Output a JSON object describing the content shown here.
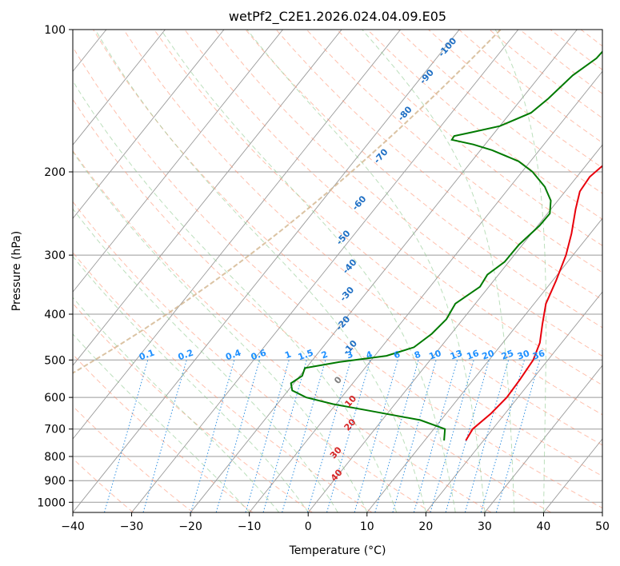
{
  "chart_data": {
    "type": "line",
    "subtype": "skew-t log-p",
    "title": "wetPf2_C2E1.2026.024.04.09.E05",
    "xlabel": "Temperature (°C)",
    "ylabel": "Pressure (hPa)",
    "xlim": [
      -40,
      50
    ],
    "ylim_hpa": [
      1050,
      100
    ],
    "y_scale": "log",
    "grid": true,
    "x_ticks": [
      -40,
      -30,
      -20,
      -10,
      0,
      10,
      20,
      30,
      40,
      50
    ],
    "x_tick_labels": [
      "−40",
      "−30",
      "−20",
      "−10",
      "0",
      "10",
      "20",
      "30",
      "40",
      "50"
    ],
    "y_ticks": [
      100,
      200,
      300,
      400,
      500,
      600,
      700,
      800,
      900,
      1000
    ],
    "y_tick_labels": [
      "100",
      "200",
      "300",
      "400",
      "500",
      "600",
      "700",
      "800",
      "900",
      "1000"
    ],
    "series": [
      {
        "role": "temperature",
        "color": "#e8000b",
        "points": [
          {
            "p": 740,
            "t": 17.0
          },
          {
            "p": 700,
            "t": 16.6
          },
          {
            "p": 650,
            "t": 17.6
          },
          {
            "p": 600,
            "t": 18.1
          },
          {
            "p": 550,
            "t": 17.9
          },
          {
            "p": 500,
            "t": 17.5
          },
          {
            "p": 460,
            "t": 16.3
          },
          {
            "p": 420,
            "t": 14.2
          },
          {
            "p": 380,
            "t": 12.0
          },
          {
            "p": 340,
            "t": 10.6
          },
          {
            "p": 300,
            "t": 8.8
          },
          {
            "p": 270,
            "t": 6.8
          },
          {
            "p": 240,
            "t": 4.2
          },
          {
            "p": 220,
            "t": 2.5
          },
          {
            "p": 205,
            "t": 2.2
          },
          {
            "p": 195,
            "t": 2.8
          },
          {
            "p": 180,
            "t": 5.0
          },
          {
            "p": 170,
            "t": 6.3
          },
          {
            "p": 155,
            "t": 5.7
          },
          {
            "p": 140,
            "t": 3.8
          },
          {
            "p": 125,
            "t": 1.8
          },
          {
            "p": 112,
            "t": 1.8
          },
          {
            "p": 105,
            "t": 3.3
          },
          {
            "p": 100,
            "t": 4.6
          }
        ]
      },
      {
        "role": "dewpoint",
        "color": "#007a00",
        "points": [
          {
            "p": 740,
            "t": 13.3
          },
          {
            "p": 700,
            "t": 11.9
          },
          {
            "p": 670,
            "t": 6.5
          },
          {
            "p": 640,
            "t": -3.5
          },
          {
            "p": 620,
            "t": -10.5
          },
          {
            "p": 600,
            "t": -16.0
          },
          {
            "p": 580,
            "t": -19.3
          },
          {
            "p": 560,
            "t": -20.5
          },
          {
            "p": 540,
            "t": -19.6
          },
          {
            "p": 520,
            "t": -20.2
          },
          {
            "p": 505,
            "t": -15.2
          },
          {
            "p": 490,
            "t": -8.0
          },
          {
            "p": 470,
            "t": -4.5
          },
          {
            "p": 440,
            "t": -3.3
          },
          {
            "p": 410,
            "t": -2.8
          },
          {
            "p": 380,
            "t": -3.4
          },
          {
            "p": 350,
            "t": -1.5
          },
          {
            "p": 330,
            "t": -1.9
          },
          {
            "p": 310,
            "t": -0.7
          },
          {
            "p": 285,
            "t": -0.6
          },
          {
            "p": 260,
            "t": 0.3
          },
          {
            "p": 245,
            "t": 0.4
          },
          {
            "p": 230,
            "t": -1.2
          },
          {
            "p": 215,
            "t": -4.1
          },
          {
            "p": 200,
            "t": -8.2
          },
          {
            "p": 190,
            "t": -12.0
          },
          {
            "p": 180,
            "t": -18.0
          },
          {
            "p": 175,
            "t": -22.0
          },
          {
            "p": 171,
            "t": -26.3
          },
          {
            "p": 168,
            "t": -26.4
          },
          {
            "p": 165,
            "t": -24.0
          },
          {
            "p": 160,
            "t": -20.0
          },
          {
            "p": 150,
            "t": -16.5
          },
          {
            "p": 140,
            "t": -15.5
          },
          {
            "p": 125,
            "t": -14.5
          },
          {
            "p": 115,
            "t": -12.8
          },
          {
            "p": 108,
            "t": -12.6
          },
          {
            "p": 100,
            "t": -13.1
          }
        ]
      }
    ],
    "annotations": {
      "dry_adiabats": [
        {
          "label": "-100",
          "p": 110,
          "t": -39.0
        },
        {
          "label": "-90",
          "p": 127,
          "t": -38.5
        },
        {
          "label": "-80",
          "p": 152,
          "t": -37.2
        },
        {
          "label": "-70",
          "p": 187,
          "t": -35.5
        },
        {
          "label": "-60",
          "p": 235,
          "t": -32.8
        },
        {
          "label": "-50",
          "p": 278,
          "t": -30.8
        },
        {
          "label": "-40",
          "p": 320,
          "t": -25.8
        },
        {
          "label": "-30",
          "p": 366,
          "t": -22.5
        },
        {
          "label": "-20",
          "p": 422,
          "t": -19.2
        },
        {
          "label": "-10",
          "p": 475,
          "t": -14.7
        },
        {
          "label": "0",
          "p": 557,
          "t": -12.3
        },
        {
          "label": "10",
          "p": 617,
          "t": -7.3
        },
        {
          "label": "20",
          "p": 692,
          "t": -4.2
        },
        {
          "label": "30",
          "p": 793,
          "t": -2.8
        },
        {
          "label": "40",
          "p": 885,
          "t": 0.4
        }
      ],
      "mixing_ratios": {
        "values": [
          "0.1",
          "0.2",
          "0.4",
          "0.6",
          "1",
          "1.5",
          "2",
          "3",
          "4",
          "6",
          "8",
          "10",
          "13",
          "16",
          "20",
          "25",
          "30",
          "36"
        ],
        "t_positions": [
          -48.0,
          -41.4,
          -33.3,
          -29.0,
          -24.0,
          -21.0,
          -17.8,
          -13.5,
          -10.2,
          -5.5,
          -2.0,
          1.0,
          4.6,
          7.4,
          10.0,
          13.3,
          16.0,
          18.6
        ]
      }
    },
    "colors": {
      "dry_adiabat": "#ff8c69",
      "moist_adiabat": "#8fc98f",
      "mixing_ratio": "#2f8fe0",
      "isotherm": "#9a9a9a",
      "isobar": "#9a9a9a",
      "outer_curve": "#d2b48c",
      "label_blue": "#1f6fc4",
      "label_red": "#d62728",
      "label_bright_blue": "#1e90ff"
    }
  }
}
